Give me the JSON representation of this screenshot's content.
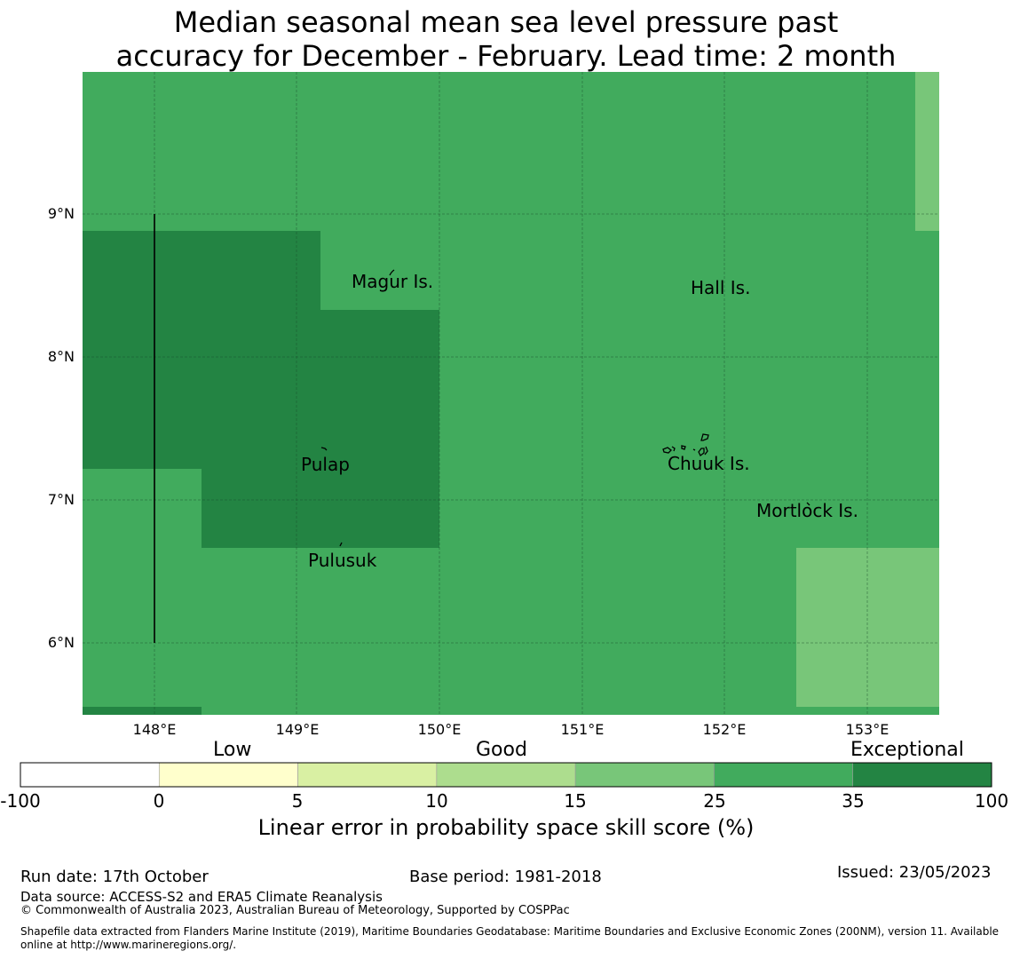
{
  "title": {
    "line1": "Median seasonal mean sea level pressure past",
    "line2": "accuracy for December - February. Lead time: 2 month"
  },
  "map": {
    "lat_labels": [
      "9°N",
      "8°N",
      "7°N",
      "6°N"
    ],
    "lon_labels": [
      "148°E",
      "149°E",
      "150°E",
      "151°E",
      "152°E",
      "153°E"
    ],
    "places": [
      "Magur Is.",
      "Hall Is.",
      "Pulap",
      "Chuuk Is.",
      "Mortlock Is.",
      "Pulusuk"
    ]
  },
  "colorbar": {
    "categories": [
      "Low",
      "Good",
      "Exceptional"
    ],
    "ticks": [
      "-100",
      "0",
      "5",
      "10",
      "15",
      "25",
      "35",
      "100"
    ],
    "colors": [
      "#ffffff",
      "#ffffcc",
      "#d9f0a3",
      "#addd8e",
      "#78c679",
      "#41ab5d",
      "#238443"
    ],
    "label": "Linear error in probability space skill score (%)"
  },
  "footer": {
    "run_date": "Run date: 17th October",
    "base_period": "Base period: 1981-2018",
    "issued": "Issued: 23/05/2023",
    "data_source": "Data source: ACCESS-S2 and ERA5 Climate Reanalysis",
    "copyright": "© Commonwealth of Australia 2023, Australian Bureau of Meteorology, Supported by COSPPac",
    "shapefile_line1": "Shapefile data extracted from Flanders Marine Institute (2019), Maritime Boundaries Geodatabase: Maritime Boundaries and Exclusive Economic Zones (200NM), version 11. Available",
    "shapefile_line2": "online at http://www.marineregions.org/."
  }
}
